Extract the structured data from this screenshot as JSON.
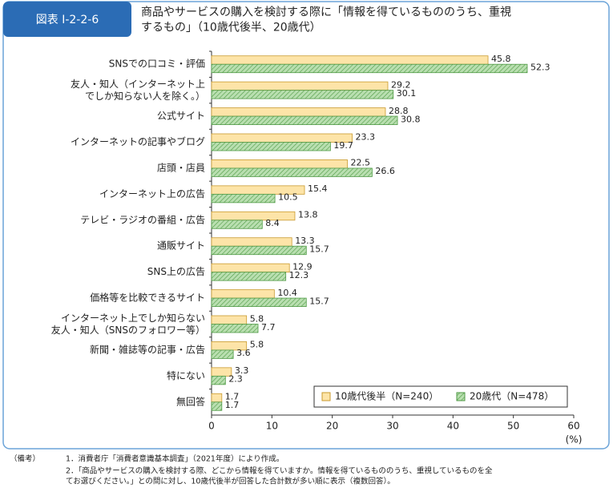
{
  "header": {
    "badge": "図表 I-2-2-6",
    "title": "商品やサービスの購入を検討する際に「情報を得ているもののうち、重視\nするもの」（10歳代後半、20歳代）"
  },
  "chart_data": {
    "type": "bar",
    "orientation": "horizontal",
    "categories": [
      "SNSでの口コミ・評価",
      "友人・知人（インターネット上\nでしか知らない人を除く。）",
      "公式サイト",
      "インターネットの記事やブログ",
      "店頭・店員",
      "インターネット上の広告",
      "テレビ・ラジオの番組・広告",
      "通販サイト",
      "SNS上の広告",
      "価格等を比較できるサイト",
      "インターネット上でしか知らない\n友人・知人（SNSのフォロワー等）",
      "新聞・雑誌等の記事・広告",
      "特にない",
      "無回答"
    ],
    "series": [
      {
        "name": "10歳代後半（N=240）",
        "color": "#fde4a8",
        "values": [
          45.8,
          29.2,
          28.8,
          23.3,
          22.5,
          15.4,
          13.8,
          13.3,
          12.9,
          10.4,
          5.8,
          5.8,
          3.3,
          1.7
        ]
      },
      {
        "name": "20歳代（N=478）",
        "color": "#b9dfb0",
        "values": [
          52.3,
          30.1,
          30.8,
          19.7,
          26.6,
          10.5,
          8.4,
          15.7,
          12.3,
          15.7,
          7.7,
          3.6,
          2.3,
          1.7
        ]
      }
    ],
    "xlim": [
      0,
      60
    ],
    "xticks": [
      0,
      10,
      20,
      30,
      40,
      50,
      60
    ],
    "x_unit": "(%)",
    "grid": false,
    "legend": "lower right"
  },
  "notes": {
    "label": "（備考）",
    "items": [
      "1．消費者庁「消費者意識基本調査」（2021年度）により作成。",
      "2．「商品やサービスの購入を検討する際、どこから情報を得ていますか。情報を得ているもののうち、重視しているものを全\nてお選びください。」との問に対し、10歳代後半が回答した合計数が多い順に表示（複数回答）。"
    ]
  }
}
